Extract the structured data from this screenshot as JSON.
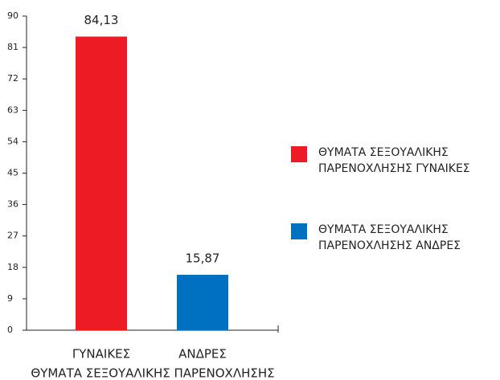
{
  "chart_data": {
    "type": "bar",
    "categories": [
      "ΓΥΝΑΙΚΕΣ",
      "ΑΝΔΡΕΣ"
    ],
    "x_label": "ΘΥΜΑΤΑ ΣΕΞΟΥΑΛΙΚΗΣ ΠΑΡΕΝΟΧΛΗΣΗΣ",
    "series": [
      {
        "name": "ΘΥΜΑΤΑ ΣΕΞΟΥΑΛΙΚΗΣ ΠΑΡΕΝΟΧΛΗΣΗΣ ΓΥΝΑΙΚΕΣ",
        "color": "#ed1c24",
        "values": [
          84.13,
          null
        ],
        "value_labels": [
          "84,13",
          null
        ]
      },
      {
        "name": "ΘΥΜΑΤΑ ΣΕΞΟΥΑΛΙΚΗΣ ΠΑΡΕΝΟΧΛΗΣΗΣ ΑΝΔΡΕΣ",
        "color": "#0070c0",
        "values": [
          null,
          15.87
        ],
        "value_labels": [
          null,
          "15,87"
        ]
      }
    ],
    "ylim": [
      0,
      90
    ],
    "yticks": [
      0,
      9,
      18,
      27,
      36,
      45,
      54,
      63,
      72,
      81,
      90
    ],
    "legend": "right"
  }
}
